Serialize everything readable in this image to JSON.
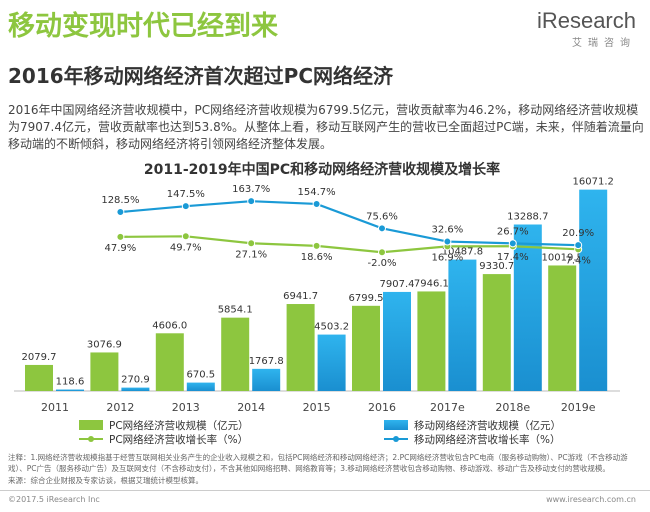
{
  "header": {
    "title": "移动变现时代已经到来",
    "subtitle": "2016年移动网络经济首次超过PC网络经济",
    "logo": "iResearch",
    "logo_cn": "艾瑞咨询"
  },
  "body": "2016年中国网络经济营收规模中，PC网络经济营收规模为6799.5亿元，营收贡献率为46.2%，移动网络经济营收规模为7907.4亿元，营收贡献率也达到53.8%。从整体上看，移动互联网产生的营收已全面超过PC端，未来，伴随着流量向移动端的不断倾斜，移动网络经济将引领网络经济整体发展。",
  "chart_data": {
    "type": "bar",
    "title": "2011-2019年中国PC和移动网络经济营收规模及增长率",
    "categories": [
      "2011",
      "2012",
      "2013",
      "2014",
      "2015",
      "2016",
      "2017e",
      "2018e",
      "2019e"
    ],
    "ylim": [
      0,
      17000
    ],
    "y2lim": [
      -300,
      200
    ],
    "series": [
      {
        "name": "PC网络经济营收规模（亿元）",
        "color": "#8dc63f",
        "values": [
          2079.7,
          3076.9,
          4606.0,
          5854.1,
          6941.7,
          6799.5,
          7946.1,
          9330.7,
          10019.5
        ],
        "value_labels": [
          "2079.7",
          "3076.9",
          "4606.0",
          "5854.1",
          "6941.7",
          "6799.5",
          "7946.1",
          "9330.7",
          "10019.5"
        ]
      },
      {
        "name": "移动网络经济营收规模（亿元）",
        "color": "#29a8e0",
        "values": [
          118.6,
          270.9,
          670.5,
          1767.8,
          4503.2,
          7907.4,
          10487.8,
          13288.7,
          16071.2
        ],
        "value_labels": [
          "118.6",
          "270.9",
          "670.5",
          "1767.8",
          "4503.2",
          "7907.4",
          "10487.8",
          "13288.7",
          "16071.2"
        ]
      },
      {
        "name": "PC网络经济营收增长率（%）",
        "color": "#8dc63f",
        "axis": "y2",
        "values": [
          null,
          47.9,
          49.7,
          27.1,
          18.6,
          -2.0,
          16.9,
          17.4,
          7.4
        ],
        "value_labels": [
          null,
          "47.9%",
          "49.7%",
          "27.1%",
          "18.6%",
          "-2.0%",
          "16.9%",
          "17.4%",
          "7.4%"
        ]
      },
      {
        "name": "移动网络经济营收增长率（%）",
        "color": "#1a9ad6",
        "axis": "y2",
        "values": [
          null,
          128.5,
          147.5,
          163.7,
          154.7,
          75.6,
          32.6,
          26.7,
          20.9
        ],
        "value_labels": [
          null,
          "128.5%",
          "147.5%",
          "163.7%",
          "154.7%",
          "75.6%",
          "32.6%",
          "26.7%",
          "20.9%"
        ]
      }
    ]
  },
  "notes": "注释：1.网络经济营收规模指基于经营互联网相关业务产生的企业收入规模之和，包括PC网络经济和移动网络经济；2.PC网络经济营收包含PC电商（服务移动购物）、PC游戏（不含移动游戏）、PC广告（服务移动广告）及互联网支付（不含移动支付），不含其他如网络招聘、网络教育等；3.移动网络经济营收包含移动购物、移动游戏、移动广告及移动支付的营收规模。",
  "source": "来源：综合企业财报及专家访谈，根据艾瑞统计模型核算。",
  "footer": {
    "copyright": "©2017.5 iResearch Inc",
    "url": "www.iresearch.com.cn"
  }
}
